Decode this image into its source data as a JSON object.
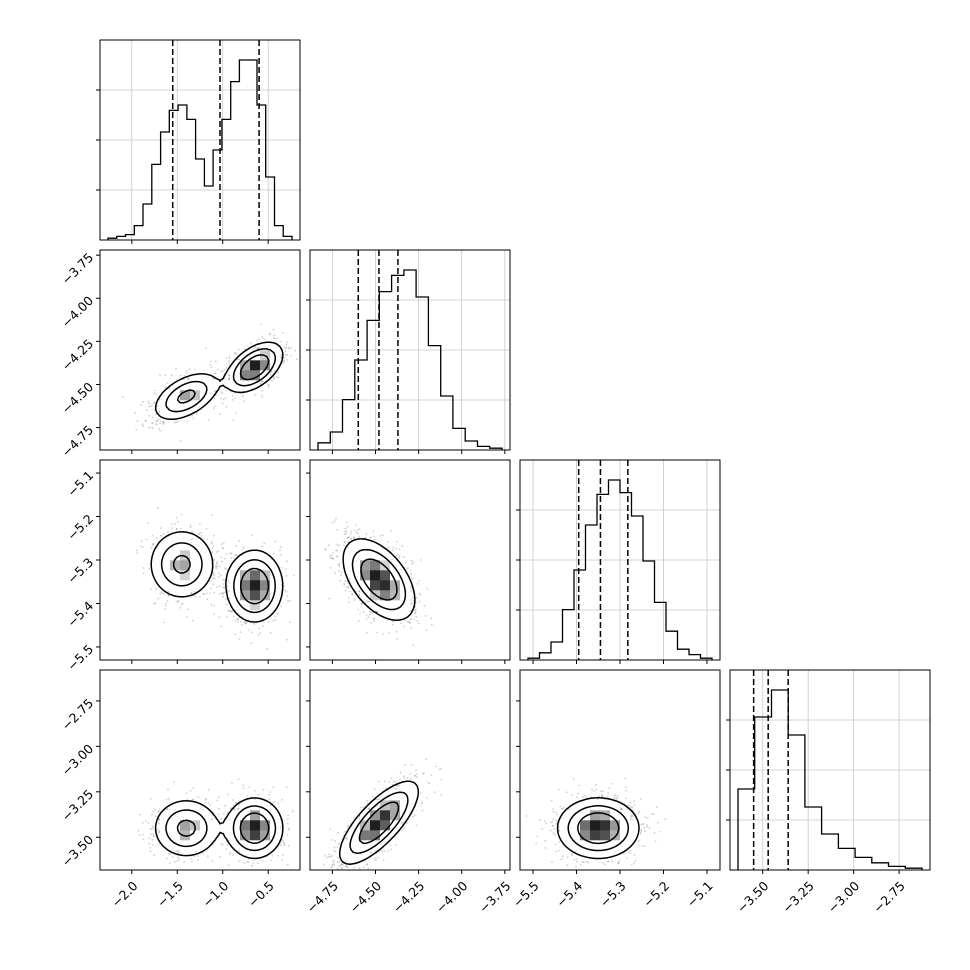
{
  "chart_data": {
    "type": "corner",
    "colors": {
      "ink": "#000000",
      "grid": "#c8c8c8",
      "points": "#777777",
      "background": "#ffffff"
    },
    "grid": true,
    "parameters": [
      {
        "range": [
          -2.35,
          -0.15
        ],
        "ticks": [
          -2.0,
          -1.5,
          -1.0,
          -0.5
        ],
        "tick_labels": [
          "−2.0",
          "−1.5",
          "−1.0",
          "−0.5"
        ],
        "quantiles": [
          -1.55,
          -1.03,
          -0.6
        ],
        "histogram": [
          0.01,
          0.02,
          0.03,
          0.08,
          0.2,
          0.42,
          0.6,
          0.72,
          0.75,
          0.67,
          0.45,
          0.3,
          0.5,
          0.67,
          0.88,
          1.0,
          1.0,
          0.75,
          0.35,
          0.08,
          0.02
        ],
        "modes": [
          {
            "mean": -1.4,
            "sd": 0.2,
            "weight": 0.45
          },
          {
            "mean": -0.65,
            "sd": 0.17,
            "weight": 0.55
          }
        ]
      },
      {
        "range": [
          -4.88,
          -3.72
        ],
        "ticks": [
          -4.75,
          -4.5,
          -4.25,
          -4.0,
          -3.75
        ],
        "tick_labels": [
          "−4.75",
          "−4.50",
          "−4.25",
          "−4.00",
          "−3.75"
        ],
        "quantiles": [
          -4.6,
          -4.48,
          -4.37
        ],
        "histogram": [
          0.04,
          0.1,
          0.28,
          0.5,
          0.72,
          0.88,
          0.97,
          1.0,
          0.85,
          0.58,
          0.3,
          0.12,
          0.05,
          0.02,
          0.01
        ]
      },
      {
        "range": [
          -5.53,
          -5.07
        ],
        "ticks": [
          -5.5,
          -5.4,
          -5.3,
          -5.2,
          -5.1
        ],
        "tick_labels": [
          "−5.5",
          "−5.4",
          "−5.3",
          "−5.2",
          "−5.1"
        ],
        "quantiles": [
          -5.395,
          -5.345,
          -5.282
        ],
        "histogram": [
          0.01,
          0.04,
          0.1,
          0.28,
          0.5,
          0.75,
          0.92,
          1.0,
          0.93,
          0.8,
          0.55,
          0.32,
          0.16,
          0.06,
          0.03,
          0.01
        ]
      },
      {
        "range": [
          -3.68,
          -2.58
        ],
        "ticks": [
          -3.5,
          -3.25,
          -3.0,
          -2.75
        ],
        "tick_labels": [
          "−3.50",
          "−3.25",
          "−3.00",
          "−2.75"
        ],
        "quantiles": [
          -3.55,
          -3.47,
          -3.36
        ],
        "histogram": [
          0.45,
          0.85,
          1.0,
          0.75,
          0.35,
          0.2,
          0.12,
          0.07,
          0.04,
          0.02,
          0.01
        ]
      }
    ],
    "pairs": [
      {
        "row": 1,
        "col": 0,
        "components": [
          {
            "mx": -1.4,
            "my": -4.57,
            "sx": 0.18,
            "sy": 0.07,
            "rho": 0.5,
            "w": 0.45
          },
          {
            "mx": -0.65,
            "my": -4.4,
            "sx": 0.15,
            "sy": 0.07,
            "rho": 0.5,
            "w": 0.55
          }
        ]
      },
      {
        "row": 2,
        "col": 0,
        "components": [
          {
            "mx": -1.45,
            "my": -5.31,
            "sx": 0.18,
            "sy": 0.04,
            "rho": 0.0,
            "w": 0.45
          },
          {
            "mx": -0.65,
            "my": -5.36,
            "sx": 0.15,
            "sy": 0.04,
            "rho": 0.0,
            "w": 0.55
          }
        ]
      },
      {
        "row": 2,
        "col": 1,
        "components": [
          {
            "mx": -4.48,
            "my": -5.345,
            "sx": 0.1,
            "sy": 0.045,
            "rho": -0.5,
            "w": 1.0
          }
        ]
      },
      {
        "row": 3,
        "col": 0,
        "components": [
          {
            "mx": -1.4,
            "my": -3.45,
            "sx": 0.18,
            "sy": 0.08,
            "rho": 0.0,
            "w": 0.45
          },
          {
            "mx": -0.65,
            "my": -3.45,
            "sx": 0.15,
            "sy": 0.08,
            "rho": 0.0,
            "w": 0.55
          }
        ]
      },
      {
        "row": 3,
        "col": 1,
        "components": [
          {
            "mx": -4.48,
            "my": -3.42,
            "sx": 0.11,
            "sy": 0.11,
            "rho": 0.75,
            "w": 1.0
          }
        ]
      },
      {
        "row": 3,
        "col": 2,
        "components": [
          {
            "mx": -5.35,
            "my": -3.45,
            "sx": 0.045,
            "sy": 0.08,
            "rho": 0.0,
            "w": 1.0
          }
        ]
      }
    ]
  }
}
